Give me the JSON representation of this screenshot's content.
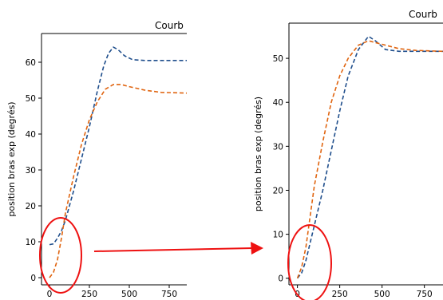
{
  "chart_data": [
    {
      "type": "line",
      "title": "Courb",
      "ylabel": "position bras exp (degrés)",
      "xlabel": "",
      "xlim": [
        -50,
        860
      ],
      "ylim": [
        -2,
        68
      ],
      "x_ticks": [
        0,
        250,
        500,
        750
      ],
      "y_ticks": [
        0,
        10,
        20,
        30,
        40,
        50,
        60
      ],
      "grid": false,
      "series": [
        {
          "color": "#1f4e8c",
          "style": "dashed",
          "points": [
            [
              0,
              9.2
            ],
            [
              25,
              9.4
            ],
            [
              50,
              11
            ],
            [
              75,
              13
            ],
            [
              100,
              16
            ],
            [
              150,
              24
            ],
            [
              200,
              33
            ],
            [
              250,
              42
            ],
            [
              300,
              52
            ],
            [
              340,
              59
            ],
            [
              370,
              62.5
            ],
            [
              400,
              64.2
            ],
            [
              430,
              63.5
            ],
            [
              470,
              61.8
            ],
            [
              520,
              60.7
            ],
            [
              600,
              60.5
            ],
            [
              860,
              60.5
            ]
          ]
        },
        {
          "color": "#e0640f",
          "style": "dashed",
          "points": [
            [
              0,
              0
            ],
            [
              25,
              1.5
            ],
            [
              50,
              5
            ],
            [
              75,
              11
            ],
            [
              100,
              18
            ],
            [
              150,
              28
            ],
            [
              200,
              37
            ],
            [
              250,
              44
            ],
            [
              300,
              49
            ],
            [
              350,
              52.5
            ],
            [
              400,
              53.8
            ],
            [
              450,
              53.8
            ],
            [
              500,
              53.2
            ],
            [
              600,
              52.2
            ],
            [
              700,
              51.6
            ],
            [
              860,
              51.4
            ]
          ]
        }
      ]
    },
    {
      "type": "line",
      "title": "Courb",
      "ylabel": "position bras exp (degrés)",
      "xlabel": "",
      "xlim": [
        -50,
        860
      ],
      "ylim": [
        -1.5,
        58
      ],
      "x_ticks": [
        0,
        250,
        500,
        750
      ],
      "y_ticks": [
        0,
        10,
        20,
        30,
        40,
        50
      ],
      "grid": false,
      "series": [
        {
          "color": "#1f4e8c",
          "style": "dashed",
          "points": [
            [
              0,
              0
            ],
            [
              25,
              1.2
            ],
            [
              50,
              4
            ],
            [
              75,
              8
            ],
            [
              100,
              12
            ],
            [
              150,
              20
            ],
            [
              200,
              29
            ],
            [
              250,
              38
            ],
            [
              300,
              46
            ],
            [
              360,
              52
            ],
            [
              420,
              55
            ],
            [
              460,
              54
            ],
            [
              520,
              52
            ],
            [
              600,
              51.6
            ],
            [
              860,
              51.6
            ]
          ]
        },
        {
          "color": "#e0640f",
          "style": "dashed",
          "points": [
            [
              0,
              0
            ],
            [
              25,
              2.5
            ],
            [
              50,
              7
            ],
            [
              75,
              14
            ],
            [
              100,
              21
            ],
            [
              150,
              31
            ],
            [
              200,
              40
            ],
            [
              250,
              46
            ],
            [
              300,
              50
            ],
            [
              360,
              53
            ],
            [
              420,
              54
            ],
            [
              500,
              53.2
            ],
            [
              600,
              52.2
            ],
            [
              700,
              51.8
            ],
            [
              860,
              51.6
            ]
          ]
        }
      ]
    }
  ],
  "annotations": {
    "highlight_color": "#ee1111",
    "arrow_color": "#ee1111"
  }
}
